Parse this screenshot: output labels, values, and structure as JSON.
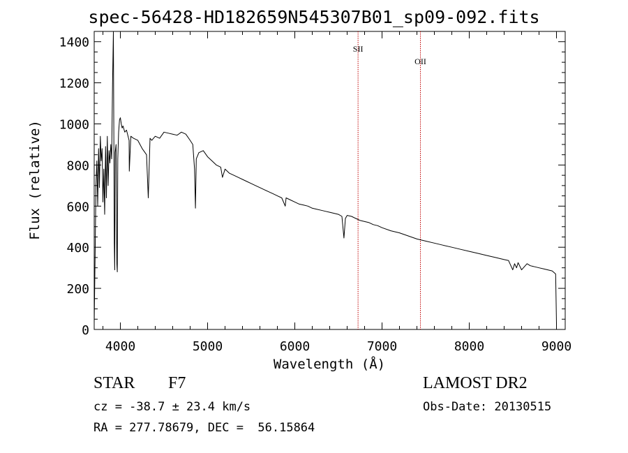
{
  "title": "spec-56428-HD182659N545307B01_sp09-092.fits",
  "info": {
    "obj_class": "STAR",
    "subclass": "F7",
    "survey": "LAMOST DR2",
    "cz": "cz = -38.7 ± 23.4 km/s",
    "obs_date": "Obs-Date: 20130515",
    "radec": "RA = 277.78679, DEC =  56.15864"
  },
  "colors": {
    "line": "#000000",
    "marker": "#c00000",
    "axes": "#000000"
  },
  "chart_data": {
    "type": "line",
    "title": "spec-56428-HD182659N545307B01_sp09-092.fits",
    "xlabel": "Wavelength (Å)",
    "ylabel": "Flux (relative)",
    "xlim": [
      3700,
      9100
    ],
    "ylim": [
      0,
      1450
    ],
    "x_ticks": [
      4000,
      5000,
      6000,
      7000,
      8000,
      9000
    ],
    "y_ticks": [
      0,
      200,
      400,
      600,
      800,
      1000,
      1200,
      1400
    ],
    "grid": false,
    "reference_lines": [
      {
        "label": "SII",
        "x": 6725
      },
      {
        "label": "OII",
        "x": 7440
      }
    ],
    "series": [
      {
        "x": [
          3700,
          3710,
          3720,
          3730,
          3740,
          3750,
          3760,
          3770,
          3780,
          3790,
          3800,
          3810,
          3820,
          3830,
          3840,
          3850,
          3860,
          3870,
          3880,
          3890,
          3900,
          3910,
          3920,
          3930,
          3935,
          3940,
          3950,
          3960,
          3965,
          3970,
          3980,
          3990,
          4000,
          4010,
          4020,
          4030,
          4050,
          4070,
          4100,
          4102,
          4120,
          4150,
          4200,
          4250,
          4300,
          4320,
          4340,
          4360,
          4400,
          4450,
          4500,
          4550,
          4600,
          4650,
          4700,
          4750,
          4800,
          4830,
          4850,
          4861,
          4870,
          4900,
          4950,
          5000,
          5050,
          5100,
          5150,
          5170,
          5200,
          5250,
          5300,
          5350,
          5400,
          5450,
          5500,
          5550,
          5600,
          5650,
          5700,
          5750,
          5800,
          5850,
          5890,
          5895,
          5900,
          5950,
          6000,
          6050,
          6100,
          6150,
          6200,
          6250,
          6300,
          6350,
          6400,
          6450,
          6500,
          6540,
          6563,
          6580,
          6600,
          6650,
          6700,
          6750,
          6800,
          6850,
          6900,
          6950,
          7000,
          7100,
          7200,
          7300,
          7400,
          7500,
          7600,
          7700,
          7800,
          7900,
          8000,
          8100,
          8200,
          8300,
          8400,
          8450,
          8498,
          8520,
          8542,
          8560,
          8600,
          8662,
          8700,
          8750,
          8800,
          8850,
          8900,
          8950,
          8990,
          9000
        ],
        "values": [
          30,
          360,
          700,
          820,
          600,
          880,
          690,
          940,
          820,
          880,
          620,
          780,
          560,
          890,
          640,
          940,
          700,
          870,
          810,
          900,
          830,
          1200,
          1460,
          420,
          290,
          860,
          900,
          320,
          280,
          830,
          960,
          1020,
          1030,
          1000,
          980,
          990,
          960,
          970,
          920,
          770,
          940,
          930,
          920,
          880,
          850,
          640,
          930,
          920,
          940,
          930,
          960,
          955,
          950,
          945,
          960,
          950,
          920,
          900,
          780,
          590,
          830,
          860,
          870,
          840,
          820,
          800,
          790,
          740,
          780,
          760,
          750,
          740,
          730,
          720,
          710,
          700,
          690,
          680,
          670,
          660,
          650,
          640,
          600,
          620,
          640,
          630,
          620,
          610,
          605,
          600,
          590,
          585,
          580,
          575,
          570,
          565,
          560,
          550,
          445,
          540,
          555,
          550,
          540,
          530,
          525,
          520,
          510,
          505,
          495,
          480,
          470,
          455,
          440,
          430,
          420,
          410,
          400,
          390,
          380,
          370,
          360,
          350,
          340,
          335,
          290,
          320,
          300,
          325,
          290,
          320,
          310,
          305,
          300,
          295,
          290,
          285,
          270,
          30
        ]
      }
    ]
  }
}
